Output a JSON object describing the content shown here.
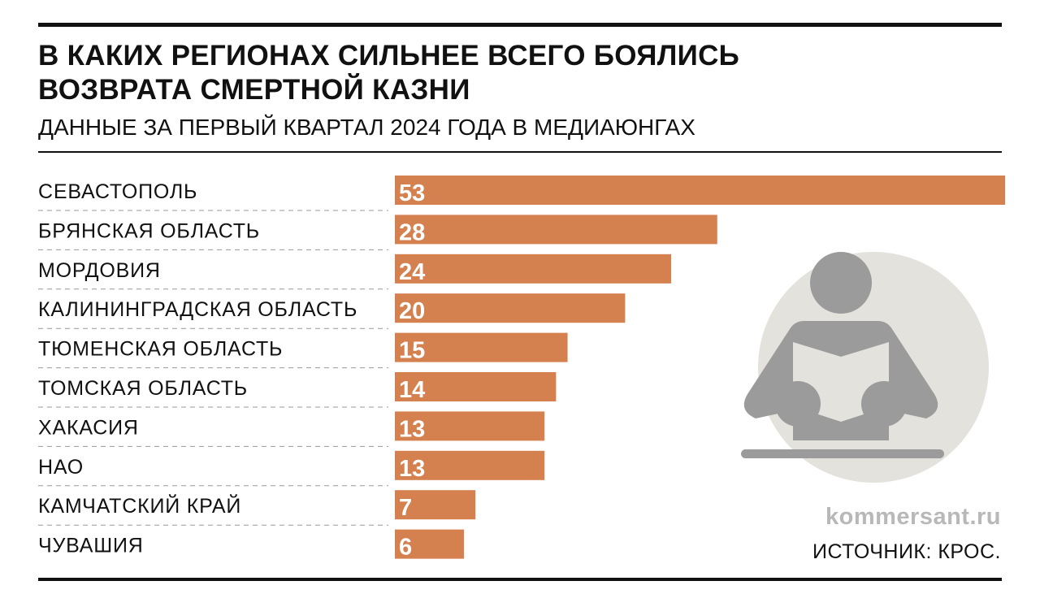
{
  "header": {
    "title_line1": "В КАКИХ РЕГИОНАХ СИЛЬНЕЕ ВСЕГО БОЯЛИСЬ",
    "title_line2": "ВОЗВРАТА СМЕРТНОЙ КАЗНИ",
    "subtitle": "ДАННЫЕ ЗА ПЕРВЫЙ КВАРТАЛ 2024 ГОДА В МЕДИАЮНГАХ"
  },
  "footer": {
    "watermark": "kommersant.ru",
    "source": "ИСТОЧНИК: КРОС."
  },
  "colors": {
    "bar": "#d4804f",
    "circle": "#e3e2dc",
    "figure": "#9b9b9b"
  },
  "chart_data": {
    "type": "bar",
    "orientation": "horizontal",
    "title": "В КАКИХ РЕГИОНАХ СИЛЬНЕЕ ВСЕГО БОЯЛИСЬ ВОЗВРАТА СМЕРТНОЙ КАЗНИ",
    "subtitle": "ДАННЫЕ ЗА ПЕРВЫЙ КВАРТАЛ 2024 ГОДА В МЕДИАЮНГАХ",
    "categories": [
      "СЕВАСТОПОЛЬ",
      "БРЯНСКАЯ ОБЛАСТЬ",
      "МОРДОВИЯ",
      "КАЛИНИНГРАДСКАЯ ОБЛАСТЬ",
      "ТЮМЕНСКАЯ ОБЛАСТЬ",
      "ТОМСКАЯ ОБЛАСТЬ",
      "ХАКАСИЯ",
      "НАО",
      "КАМЧАТСКИЙ КРАЙ",
      "ЧУВАШИЯ"
    ],
    "values": [
      53,
      28,
      24,
      20,
      15,
      14,
      13,
      13,
      7,
      6
    ],
    "xlim": [
      0,
      53
    ],
    "grid": false
  }
}
